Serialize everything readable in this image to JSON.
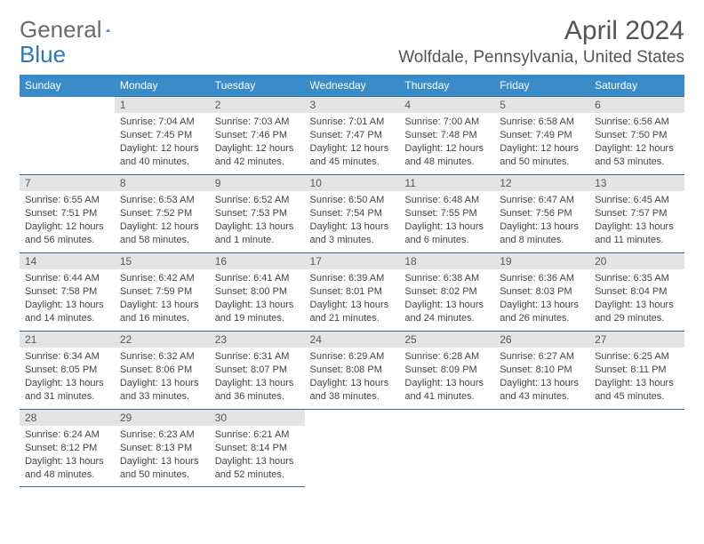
{
  "brand": {
    "part1": "General",
    "part2": "Blue"
  },
  "title": "April 2024",
  "location": "Wolfdale, Pennsylvania, United States",
  "colors": {
    "header_bg": "#3a8cc9",
    "header_fg": "#ffffff",
    "cell_border": "#3a6a8f",
    "daynum_bg": "#e4e4e4",
    "daynum_fg": "#595959",
    "body_fg": "#444444",
    "title_fg": "#555555",
    "brand_gray": "#6b6b6b",
    "brand_blue": "#2d78b8"
  },
  "typography": {
    "month_title_fontsize": 30,
    "location_fontsize": 19,
    "thead_fontsize": 12,
    "daynum_fontsize": 12,
    "cell_fontsize": 11
  },
  "weekdays": [
    "Sunday",
    "Monday",
    "Tuesday",
    "Wednesday",
    "Thursday",
    "Friday",
    "Saturday"
  ],
  "weeks": [
    [
      null,
      {
        "n": "1",
        "sr": "7:04 AM",
        "ss": "7:45 PM",
        "dl": "12 hours and 40 minutes."
      },
      {
        "n": "2",
        "sr": "7:03 AM",
        "ss": "7:46 PM",
        "dl": "12 hours and 42 minutes."
      },
      {
        "n": "3",
        "sr": "7:01 AM",
        "ss": "7:47 PM",
        "dl": "12 hours and 45 minutes."
      },
      {
        "n": "4",
        "sr": "7:00 AM",
        "ss": "7:48 PM",
        "dl": "12 hours and 48 minutes."
      },
      {
        "n": "5",
        "sr": "6:58 AM",
        "ss": "7:49 PM",
        "dl": "12 hours and 50 minutes."
      },
      {
        "n": "6",
        "sr": "6:56 AM",
        "ss": "7:50 PM",
        "dl": "12 hours and 53 minutes."
      }
    ],
    [
      {
        "n": "7",
        "sr": "6:55 AM",
        "ss": "7:51 PM",
        "dl": "12 hours and 56 minutes."
      },
      {
        "n": "8",
        "sr": "6:53 AM",
        "ss": "7:52 PM",
        "dl": "12 hours and 58 minutes."
      },
      {
        "n": "9",
        "sr": "6:52 AM",
        "ss": "7:53 PM",
        "dl": "13 hours and 1 minute."
      },
      {
        "n": "10",
        "sr": "6:50 AM",
        "ss": "7:54 PM",
        "dl": "13 hours and 3 minutes."
      },
      {
        "n": "11",
        "sr": "6:48 AM",
        "ss": "7:55 PM",
        "dl": "13 hours and 6 minutes."
      },
      {
        "n": "12",
        "sr": "6:47 AM",
        "ss": "7:56 PM",
        "dl": "13 hours and 8 minutes."
      },
      {
        "n": "13",
        "sr": "6:45 AM",
        "ss": "7:57 PM",
        "dl": "13 hours and 11 minutes."
      }
    ],
    [
      {
        "n": "14",
        "sr": "6:44 AM",
        "ss": "7:58 PM",
        "dl": "13 hours and 14 minutes."
      },
      {
        "n": "15",
        "sr": "6:42 AM",
        "ss": "7:59 PM",
        "dl": "13 hours and 16 minutes."
      },
      {
        "n": "16",
        "sr": "6:41 AM",
        "ss": "8:00 PM",
        "dl": "13 hours and 19 minutes."
      },
      {
        "n": "17",
        "sr": "6:39 AM",
        "ss": "8:01 PM",
        "dl": "13 hours and 21 minutes."
      },
      {
        "n": "18",
        "sr": "6:38 AM",
        "ss": "8:02 PM",
        "dl": "13 hours and 24 minutes."
      },
      {
        "n": "19",
        "sr": "6:36 AM",
        "ss": "8:03 PM",
        "dl": "13 hours and 26 minutes."
      },
      {
        "n": "20",
        "sr": "6:35 AM",
        "ss": "8:04 PM",
        "dl": "13 hours and 29 minutes."
      }
    ],
    [
      {
        "n": "21",
        "sr": "6:34 AM",
        "ss": "8:05 PM",
        "dl": "13 hours and 31 minutes."
      },
      {
        "n": "22",
        "sr": "6:32 AM",
        "ss": "8:06 PM",
        "dl": "13 hours and 33 minutes."
      },
      {
        "n": "23",
        "sr": "6:31 AM",
        "ss": "8:07 PM",
        "dl": "13 hours and 36 minutes."
      },
      {
        "n": "24",
        "sr": "6:29 AM",
        "ss": "8:08 PM",
        "dl": "13 hours and 38 minutes."
      },
      {
        "n": "25",
        "sr": "6:28 AM",
        "ss": "8:09 PM",
        "dl": "13 hours and 41 minutes."
      },
      {
        "n": "26",
        "sr": "6:27 AM",
        "ss": "8:10 PM",
        "dl": "13 hours and 43 minutes."
      },
      {
        "n": "27",
        "sr": "6:25 AM",
        "ss": "8:11 PM",
        "dl": "13 hours and 45 minutes."
      }
    ],
    [
      {
        "n": "28",
        "sr": "6:24 AM",
        "ss": "8:12 PM",
        "dl": "13 hours and 48 minutes."
      },
      {
        "n": "29",
        "sr": "6:23 AM",
        "ss": "8:13 PM",
        "dl": "13 hours and 50 minutes."
      },
      {
        "n": "30",
        "sr": "6:21 AM",
        "ss": "8:14 PM",
        "dl": "13 hours and 52 minutes."
      },
      null,
      null,
      null,
      null
    ]
  ],
  "labels": {
    "sunrise": "Sunrise:",
    "sunset": "Sunset:",
    "daylight": "Daylight:"
  }
}
